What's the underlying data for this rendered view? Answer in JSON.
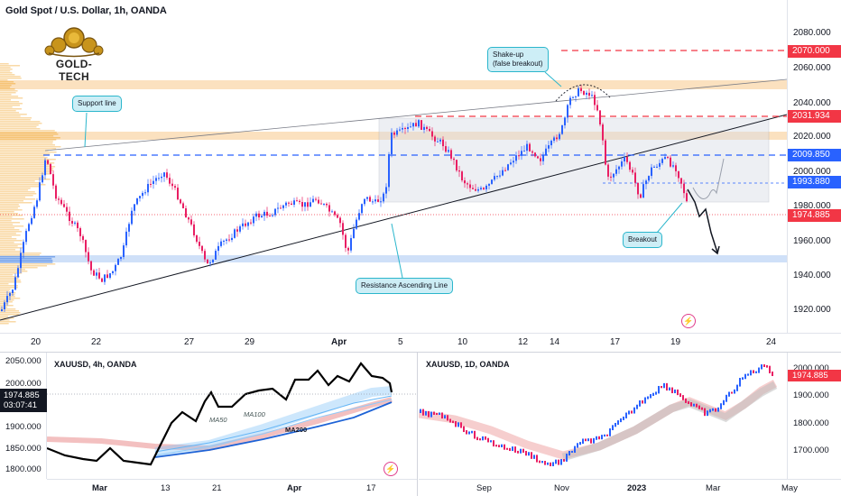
{
  "main": {
    "title": "Gold Spot / U.S. Dollar, 1h, OANDA",
    "logo_text": "GOLD-TECH",
    "y_ticks": [
      "2080.000",
      "2060.000",
      "2040.000",
      "2020.000",
      "2000.000",
      "1980.000",
      "1960.000",
      "1940.000",
      "1920.000"
    ],
    "price_tags": [
      {
        "text": "2070.000",
        "color": "#f23645"
      },
      {
        "text": "2031.934",
        "color": "#f23645"
      },
      {
        "text": "2009.850",
        "color": "#2962ff"
      },
      {
        "text": "1993.880",
        "color": "#2962ff"
      },
      {
        "text": "1974.885",
        "color": "#f23645"
      }
    ],
    "time_ticks": [
      {
        "text": "20",
        "bold": false
      },
      {
        "text": "22",
        "bold": false
      },
      {
        "text": "27",
        "bold": false
      },
      {
        "text": "29",
        "bold": false
      },
      {
        "text": "Apr",
        "bold": true
      },
      {
        "text": "5",
        "bold": false
      },
      {
        "text": "10",
        "bold": false
      },
      {
        "text": "12",
        "bold": false
      },
      {
        "text": "14",
        "bold": false
      },
      {
        "text": "17",
        "bold": false
      },
      {
        "text": "19",
        "bold": false
      },
      {
        "text": "24",
        "bold": false
      }
    ],
    "callouts": {
      "support": "Support line",
      "resistance": "Resistance Ascending Line",
      "shakeup_1": "Shake-up",
      "shakeup_2": "(false breakout)",
      "breakout": "Breakout"
    },
    "lightning": "⚡"
  },
  "sub_4h": {
    "title": "XAUUSD, 4h, OANDA",
    "y_ticks": [
      "2050.000",
      "2000.000",
      "1900.000",
      "1850.000",
      "1800.000"
    ],
    "price_tag": "1974.885",
    "countdown": "03:07:41",
    "ma_labels": {
      "ma50": "MA50",
      "ma100": "MA100",
      "ma200": "MA200"
    },
    "time_ticks": [
      {
        "text": "Mar",
        "bold": true
      },
      {
        "text": "13",
        "bold": false
      },
      {
        "text": "21",
        "bold": false
      },
      {
        "text": "Apr",
        "bold": true
      },
      {
        "text": "17",
        "bold": false
      }
    ],
    "lightning": "⚡"
  },
  "sub_1d": {
    "title": "XAUUSD, 1D, OANDA",
    "y_ticks": [
      "2000.000",
      "1900.000",
      "1800.000",
      "1700.000"
    ],
    "price_tag": "1974.885",
    "time_ticks": [
      {
        "text": "Sep",
        "bold": false
      },
      {
        "text": "Nov",
        "bold": false
      },
      {
        "text": "2023",
        "bold": true
      },
      {
        "text": "Mar",
        "bold": false
      },
      {
        "text": "May",
        "bold": false
      }
    ]
  },
  "colors": {
    "up": "#26a69a",
    "down": "#ef5350",
    "candle_up": "#2962ff",
    "candle_down": "#e91e63",
    "red": "#f23645",
    "blue": "#2962ff"
  }
}
